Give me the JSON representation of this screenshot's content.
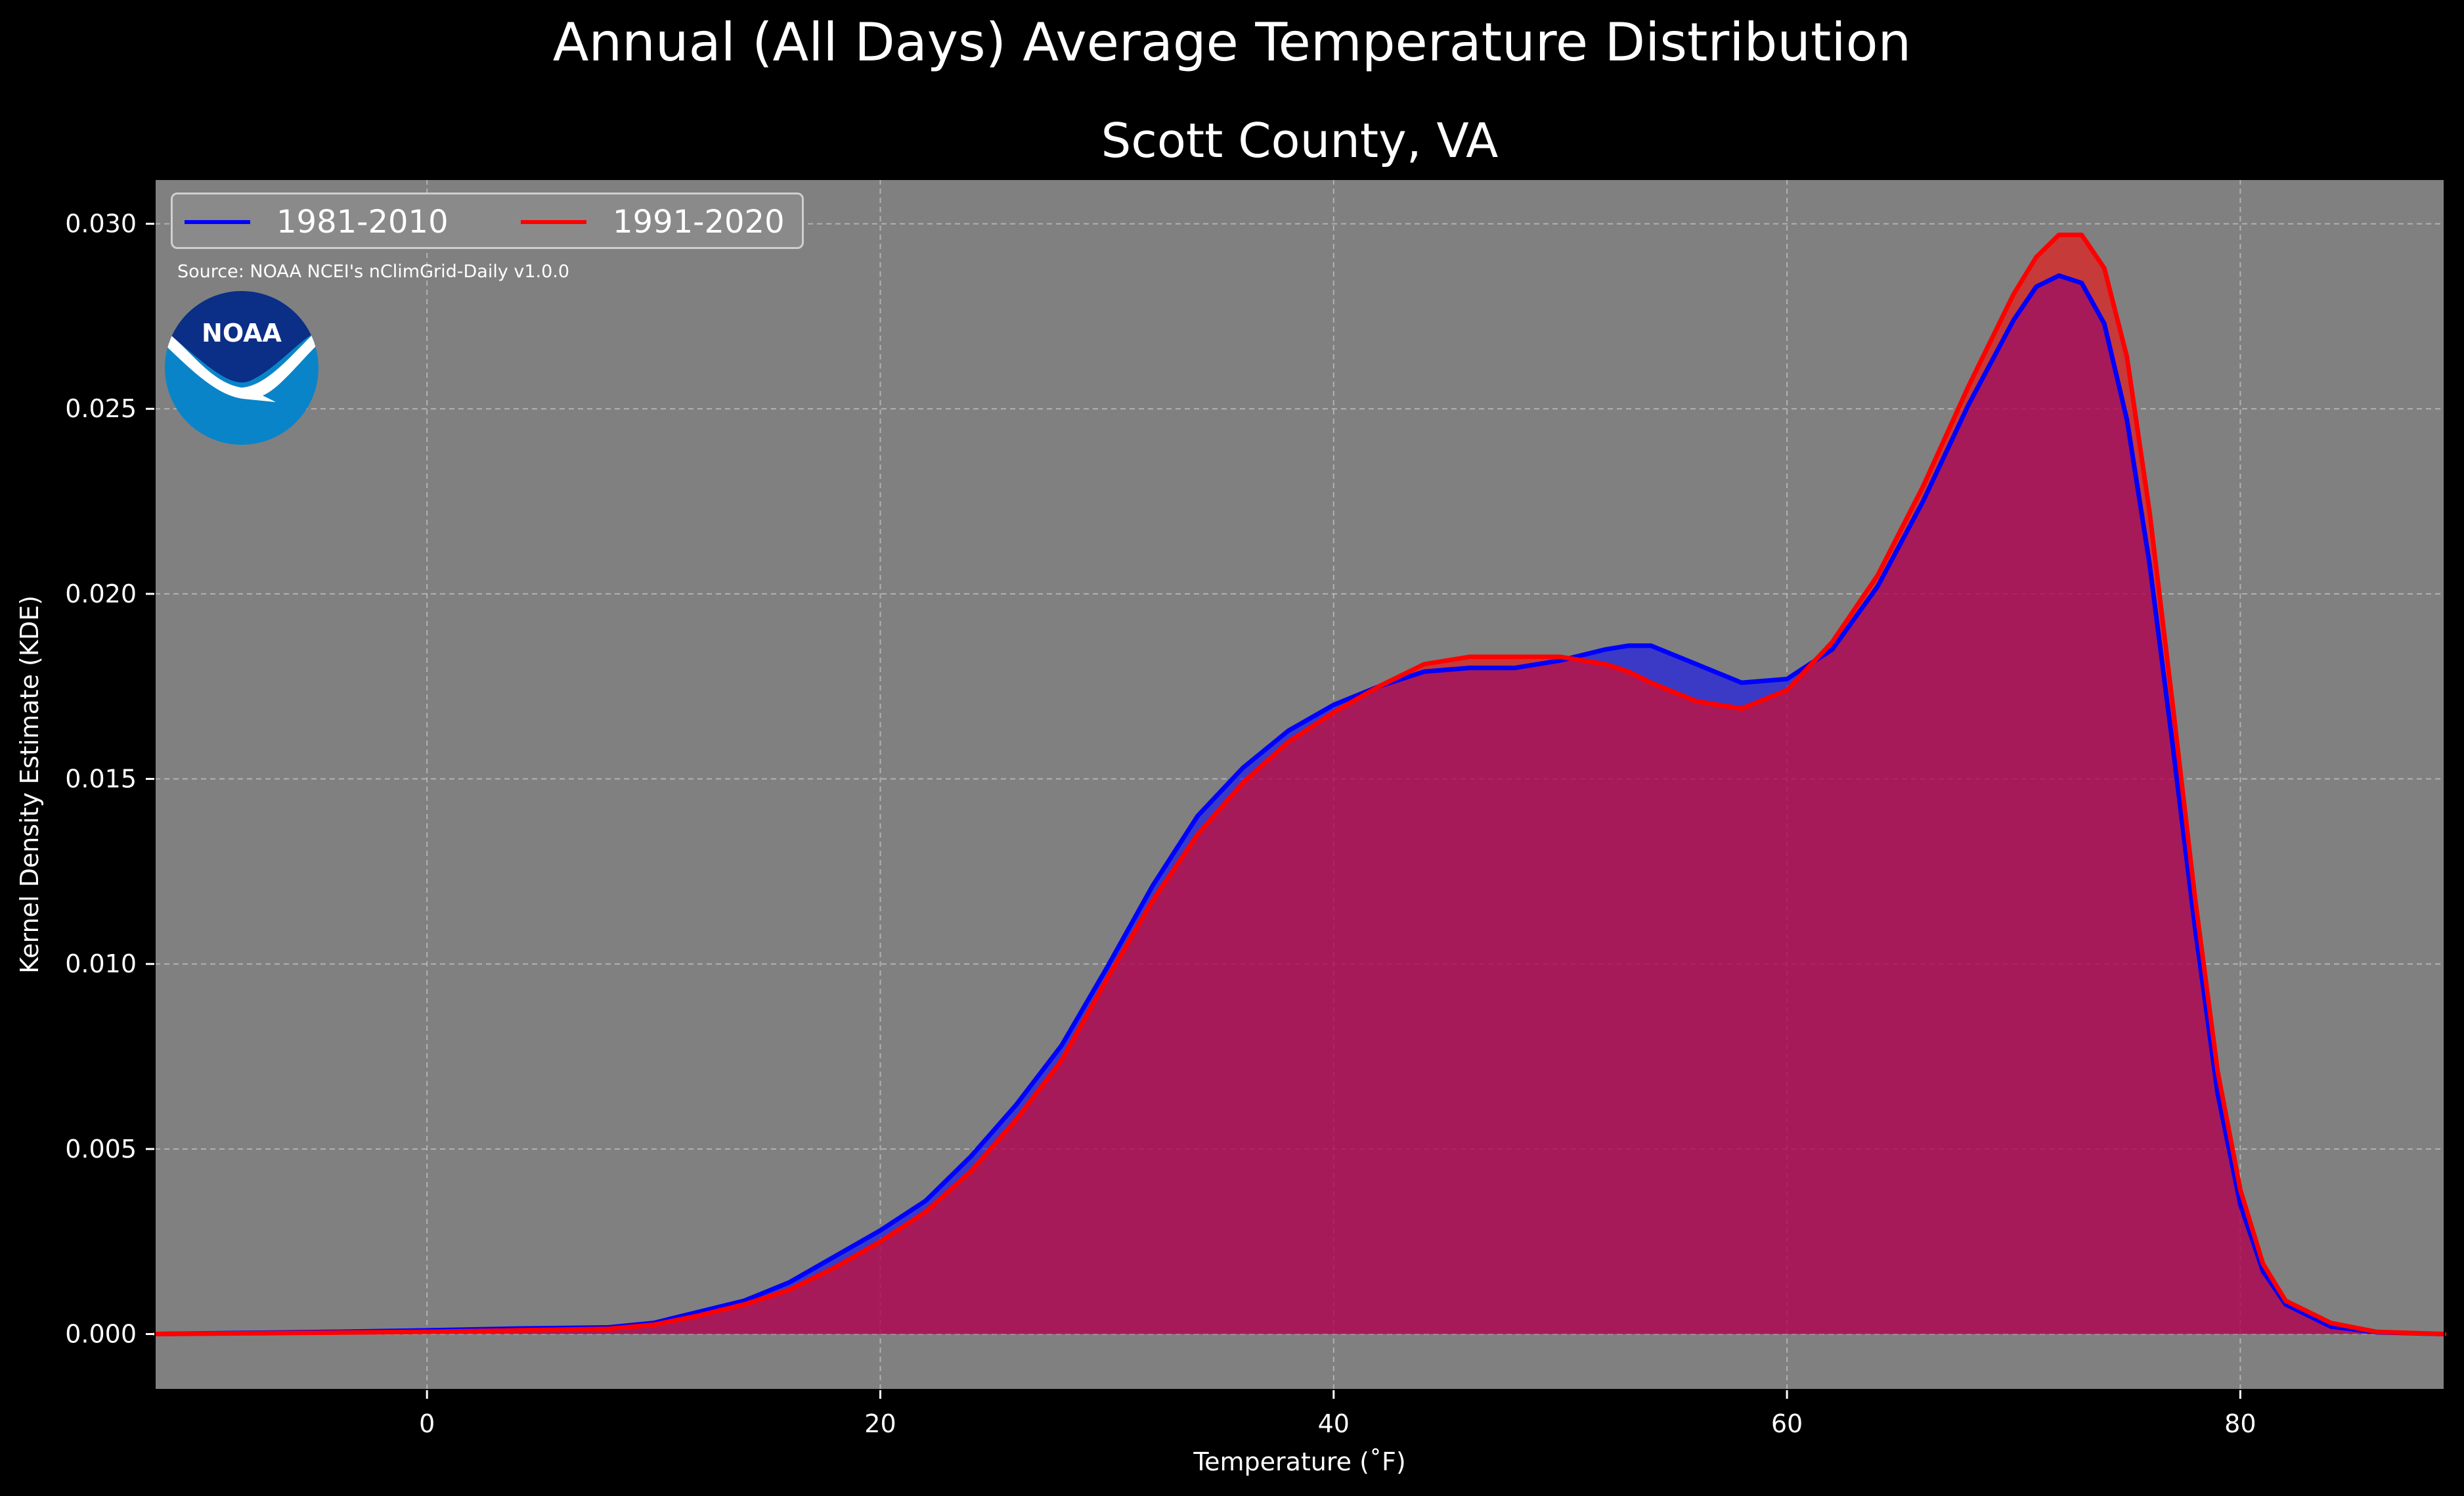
{
  "figure_title": "Annual (All Days) Average Temperature Distribution",
  "logo": {
    "text": "NOAA",
    "icon": "noaa-logo-icon"
  },
  "source_note": "Source: NOAA NCEI's nClimGrid-Daily v1.0.0",
  "colors": {
    "background": "#000000",
    "plot_background": "#808080",
    "series_1981": "#0000ff",
    "series_1991": "#ff0000",
    "overlap_fill": "#9b1c5c",
    "text": "#ffffff"
  },
  "chart_data": {
    "type": "area",
    "title": "Scott County, VA",
    "xlabel": "Temperature (˚F)",
    "ylabel": "Kernel Density Estimate (KDE)",
    "xlim": [
      -12,
      89
    ],
    "ylim": [
      -0.0015,
      0.0312
    ],
    "xticks": [
      0,
      20,
      40,
      60,
      80
    ],
    "xtick_labels": [
      "0",
      "20",
      "40",
      "60",
      "80"
    ],
    "yticks": [
      0.0,
      0.005,
      0.01,
      0.015,
      0.02,
      0.025,
      0.03
    ],
    "ytick_labels": [
      "0.000",
      "0.005",
      "0.010",
      "0.015",
      "0.020",
      "0.025",
      "0.030"
    ],
    "grid": true,
    "legend_position": "top-left",
    "x": [
      -12,
      -8,
      -4,
      0,
      4,
      8,
      10,
      12,
      14,
      16,
      18,
      20,
      22,
      24,
      26,
      28,
      30,
      32,
      34,
      36,
      38,
      40,
      42,
      44,
      46,
      48,
      50,
      52,
      53,
      54,
      56,
      58,
      60,
      62,
      64,
      66,
      68,
      70,
      71,
      72,
      73,
      74,
      75,
      76,
      77,
      78,
      79,
      80,
      81,
      82,
      84,
      86,
      89
    ],
    "series": [
      {
        "name": "1981-2010",
        "color": "#0000ff",
        "values": [
          0.0,
          3e-05,
          6e-05,
          0.0001,
          0.00015,
          0.00018,
          0.0003,
          0.0006,
          0.0009,
          0.0014,
          0.0021,
          0.0028,
          0.0036,
          0.0048,
          0.0062,
          0.0078,
          0.0099,
          0.0121,
          0.014,
          0.0153,
          0.0163,
          0.017,
          0.0175,
          0.0179,
          0.018,
          0.018,
          0.0182,
          0.0185,
          0.0186,
          0.0186,
          0.0181,
          0.0176,
          0.0177,
          0.0185,
          0.0202,
          0.0225,
          0.0251,
          0.0274,
          0.0283,
          0.0286,
          0.0284,
          0.0273,
          0.0247,
          0.0208,
          0.016,
          0.011,
          0.0065,
          0.0035,
          0.0017,
          0.0008,
          0.0002,
          5e-05,
          0.0
        ]
      },
      {
        "name": "1991-2020",
        "color": "#ff0000",
        "values": [
          0.0,
          2e-05,
          4e-05,
          6e-05,
          0.0001,
          0.00014,
          0.00025,
          0.0005,
          0.0008,
          0.0012,
          0.0018,
          0.0025,
          0.0033,
          0.0044,
          0.0058,
          0.0074,
          0.0096,
          0.0117,
          0.0135,
          0.0149,
          0.016,
          0.0168,
          0.0175,
          0.0181,
          0.0183,
          0.0183,
          0.0183,
          0.0181,
          0.0179,
          0.0176,
          0.0171,
          0.0169,
          0.0174,
          0.0187,
          0.0205,
          0.0229,
          0.0256,
          0.0281,
          0.0291,
          0.0297,
          0.0297,
          0.0288,
          0.0264,
          0.0222,
          0.0171,
          0.0118,
          0.0071,
          0.0039,
          0.0019,
          0.0009,
          0.0003,
          6e-05,
          0.0
        ]
      }
    ]
  }
}
